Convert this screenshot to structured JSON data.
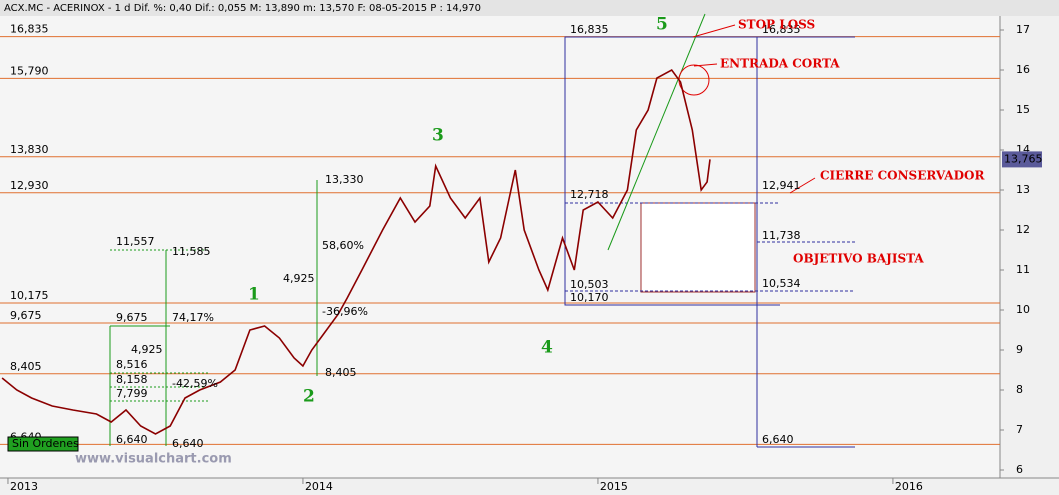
{
  "chart_data": {
    "type": "line",
    "header": "ACX.MC - ACERINOX -   1 d Dif. %: 0,40 Dif.: 0,055 M: 13,890 m: 13,570 F: 08-05-2015 P : 14,970",
    "xlim": [
      2012.973,
      2016.363
    ],
    "xticks": [
      2013,
      2014,
      2015,
      2016
    ],
    "ylim": [
      5.8,
      17.35
    ],
    "yticks": [
      6,
      7,
      8,
      9,
      10,
      11,
      12,
      13,
      14,
      15,
      16,
      17
    ],
    "series": [
      {
        "color": "#8b0000",
        "x": [
          2012.98,
          2013.03,
          2013.08,
          2013.15,
          2013.22,
          2013.3,
          2013.35,
          2013.4,
          2013.45,
          2013.5,
          2013.55,
          2013.6,
          2013.65,
          2013.72,
          2013.77,
          2013.82,
          2013.87,
          2013.92,
          2013.97,
          2014.0,
          2014.03,
          2014.07,
          2014.12,
          2014.15,
          2014.2,
          2014.27,
          2014.33,
          2014.38,
          2014.43,
          2014.45,
          2014.5,
          2014.55,
          2014.6,
          2014.63,
          2014.67,
          2014.72,
          2014.75,
          2014.8,
          2014.83,
          2014.88,
          2014.92,
          2014.95,
          2015.0,
          2015.05,
          2015.1,
          2015.13,
          2015.17,
          2015.2,
          2015.25,
          2015.28,
          2015.32,
          2015.35,
          2015.37,
          2015.38
        ],
        "values": [
          8.3,
          8.0,
          7.8,
          7.6,
          7.5,
          7.4,
          7.2,
          7.5,
          7.1,
          6.9,
          7.1,
          7.8,
          8.0,
          8.2,
          8.5,
          9.5,
          9.6,
          9.3,
          8.8,
          8.6,
          9.0,
          9.4,
          9.9,
          10.3,
          11.0,
          12.0,
          12.8,
          12.2,
          12.6,
          13.6,
          12.8,
          12.3,
          12.8,
          11.2,
          11.8,
          13.5,
          12.0,
          11.0,
          10.5,
          11.8,
          11.0,
          12.5,
          12.7,
          12.3,
          13.0,
          14.5,
          15.0,
          15.8,
          16.0,
          15.7,
          14.5,
          13.0,
          13.2,
          13.765
        ]
      }
    ],
    "levels": [
      {
        "value": 16.835,
        "label": "16,835"
      },
      {
        "value": 15.79,
        "label": "15,790"
      },
      {
        "value": 13.83,
        "label": "13,830"
      },
      {
        "value": 12.93,
        "label": "12,930"
      },
      {
        "value": 10.175,
        "label": "10,175"
      },
      {
        "value": 9.675,
        "label": "9,675"
      },
      {
        "value": 8.405,
        "label": "8,405"
      },
      {
        "value": 6.64,
        "label": "6,640"
      }
    ],
    "level_color": "#e07030",
    "last": {
      "value": 13.765,
      "label": "13,765"
    },
    "status": "Sin Órdenes",
    "watermark": "www.visualchart.com",
    "annotations": [
      "16,835",
      "16,835",
      "STOP LOSS",
      "ENTRADA CORTA",
      "5",
      "3",
      "1",
      "2",
      "4",
      "13,330",
      "58,60%",
      "4,925",
      "-36,96%",
      "8,405",
      "11,557",
      "11,585",
      "74,17%",
      "9,675",
      "4,925",
      "8,516",
      "8,158",
      "-42,59%",
      "7,799",
      "6,640",
      "6,640",
      "12,718",
      "10,503",
      "10,170",
      "12,941",
      "11,738",
      "10,534",
      "6,640",
      "CIERRE CONSERVADOR",
      "OBJETIVO BAJISTA"
    ]
  }
}
